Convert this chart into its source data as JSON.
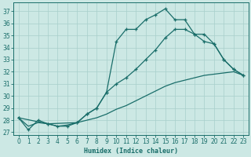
{
  "xlabel": "Humidex (Indice chaleur)",
  "bg_color": "#cce8e4",
  "grid_color": "#a8cfcb",
  "line_color": "#1a6e6a",
  "xlim": [
    -0.5,
    23.5
  ],
  "ylim": [
    26.8,
    37.7
  ],
  "xticks": [
    0,
    1,
    2,
    3,
    4,
    5,
    6,
    7,
    8,
    9,
    10,
    11,
    12,
    13,
    14,
    15,
    16,
    17,
    18,
    19,
    20,
    21,
    22,
    23
  ],
  "yticks": [
    27,
    28,
    29,
    30,
    31,
    32,
    33,
    34,
    35,
    36,
    37
  ],
  "curve_jagged_x": [
    0,
    1,
    2,
    3,
    4,
    5,
    6,
    7,
    8,
    9,
    10,
    11,
    12,
    13,
    14,
    15,
    16,
    17,
    18,
    19,
    20,
    21,
    22,
    23
  ],
  "curve_jagged_y": [
    28.2,
    27.2,
    28.0,
    27.7,
    27.5,
    27.5,
    27.8,
    28.5,
    29.0,
    30.3,
    34.5,
    35.5,
    35.5,
    36.3,
    36.7,
    37.2,
    36.3,
    36.3,
    35.1,
    35.1,
    34.3,
    33.0,
    32.2,
    31.7
  ],
  "curve_mid_x": [
    0,
    3,
    6,
    7,
    8,
    9,
    10,
    11,
    12,
    13,
    14,
    15,
    16,
    17,
    18,
    19,
    20,
    21,
    22,
    23
  ],
  "curve_mid_y": [
    28.2,
    27.7,
    27.8,
    28.5,
    29.0,
    30.3,
    31.0,
    31.5,
    32.2,
    33.0,
    33.8,
    34.8,
    35.5,
    35.5,
    35.1,
    34.5,
    34.3,
    33.0,
    32.2,
    31.7
  ],
  "curve_straight_x": [
    0,
    1,
    2,
    3,
    4,
    5,
    6,
    7,
    8,
    9,
    10,
    11,
    12,
    13,
    14,
    15,
    16,
    17,
    18,
    19,
    20,
    21,
    22,
    23
  ],
  "curve_straight_y": [
    28.2,
    27.5,
    27.8,
    27.7,
    27.5,
    27.6,
    27.8,
    28.0,
    28.2,
    28.5,
    28.9,
    29.2,
    29.6,
    30.0,
    30.4,
    30.8,
    31.1,
    31.3,
    31.5,
    31.7,
    31.8,
    31.9,
    32.0,
    31.7
  ]
}
